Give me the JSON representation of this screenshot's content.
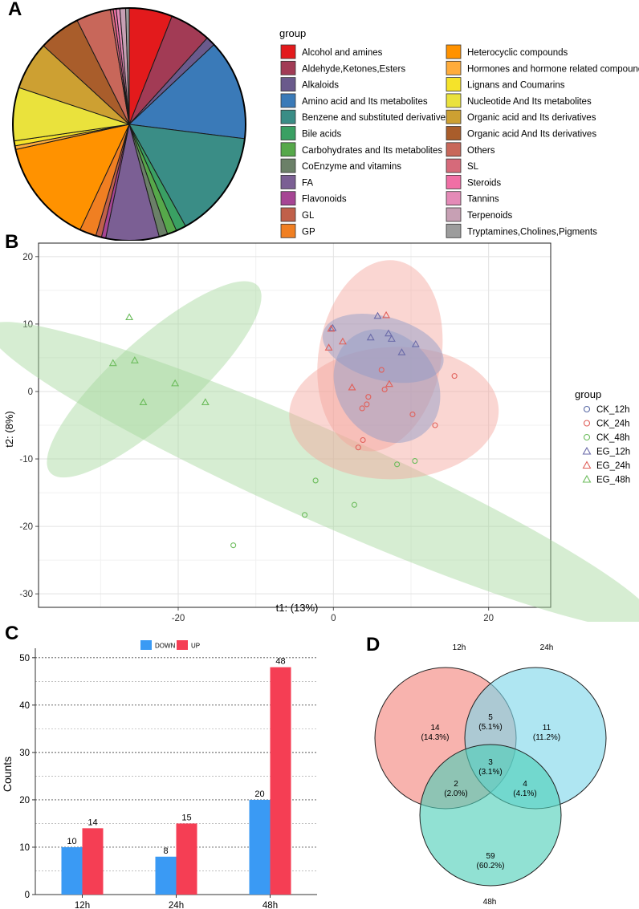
{
  "panels": {
    "a": "A",
    "b": "B",
    "c": "C",
    "d": "D"
  },
  "chart_data": [
    {
      "type": "pie",
      "panel": "A",
      "legend_title": "group",
      "slices": [
        {
          "label": "Alcohol and amines",
          "value": 6.0,
          "color": "#e31a1c"
        },
        {
          "label": "Aldehyde,Ketones,Esters",
          "value": 5.7,
          "color": "#a23b55"
        },
        {
          "label": "Alkaloids",
          "value": 1.3,
          "color": "#6a5a8c"
        },
        {
          "label": "Amino acid and Its metabolites",
          "value": 14.0,
          "color": "#3a7ab8"
        },
        {
          "label": "Benzene and substituted derivatives",
          "value": 15.0,
          "color": "#3a8d86"
        },
        {
          "label": "Bile acids",
          "value": 1.4,
          "color": "#3aa063"
        },
        {
          "label": "Carbohydrates and Its metabolites",
          "value": 1.3,
          "color": "#56a84a"
        },
        {
          "label": "CoEnzyme and vitamins",
          "value": 1.2,
          "color": "#6b8068"
        },
        {
          "label": "FA",
          "value": 7.4,
          "color": "#7b5f94"
        },
        {
          "label": "Flavonoids",
          "value": 0.6,
          "color": "#a64594"
        },
        {
          "label": "GL",
          "value": 0.8,
          "color": "#c0604a"
        },
        {
          "label": "GP",
          "value": 2.3,
          "color": "#f07f22"
        },
        {
          "label": "Heterocyclic compounds",
          "value": 14.6,
          "color": "#ff9200"
        },
        {
          "label": "Hormones and hormone related compounds",
          "value": 0.5,
          "color": "#ffac3b"
        },
        {
          "label": "Lignans and Coumarins",
          "value": 0.7,
          "color": "#f5e32a"
        },
        {
          "label": "Nucleotide And Its metabolites",
          "value": 7.4,
          "color": "#eae23c"
        },
        {
          "label": "Organic acid and Its derivatives",
          "value": 6.7,
          "color": "#cda032"
        },
        {
          "label": "Organic acid And Its derivatives",
          "value": 5.8,
          "color": "#a95d2b"
        },
        {
          "label": "Others",
          "value": 4.8,
          "color": "#c8675a"
        },
        {
          "label": "SL",
          "value": 0.4,
          "color": "#d66a7a"
        },
        {
          "label": "Steroids",
          "value": 0.4,
          "color": "#f06fa5"
        },
        {
          "label": "Tannins",
          "value": 0.5,
          "color": "#e48ab7"
        },
        {
          "label": "Terpenoids",
          "value": 0.8,
          "color": "#c7a0b4"
        },
        {
          "label": "Tryptamines,Cholines,Pigments",
          "value": 0.5,
          "color": "#9c9c9c"
        }
      ]
    },
    {
      "type": "scatter",
      "panel": "B",
      "xlabel": "t1: (13%)",
      "ylabel": "t2: (8%)",
      "xlim": [
        -38,
        28
      ],
      "ylim": [
        -32,
        22
      ],
      "xticks": [
        -20,
        0,
        20
      ],
      "yticks": [
        -30,
        -20,
        -10,
        0,
        10,
        20
      ],
      "legend_title": "group",
      "series": [
        {
          "name": "CK_12h",
          "marker": "circle",
          "color": "#5a6aa6",
          "points": []
        },
        {
          "name": "CK_24h",
          "marker": "circle",
          "color": "#e0605a",
          "points": [
            [
              4.3,
              -1.9
            ],
            [
              4.5,
              -0.8
            ],
            [
              6.2,
              3.2
            ],
            [
              6.6,
              0.3
            ],
            [
              3.7,
              -2.5
            ],
            [
              15.6,
              2.3
            ],
            [
              10.2,
              -3.4
            ],
            [
              3.8,
              -7.2
            ],
            [
              13.1,
              -5.0
            ],
            [
              3.2,
              -8.3
            ]
          ]
        },
        {
          "name": "CK_48h",
          "marker": "circle",
          "color": "#6cbc5c",
          "points": [
            [
              10.5,
              -10.3
            ],
            [
              8.2,
              -10.8
            ],
            [
              -2.3,
              -13.2
            ],
            [
              2.7,
              -16.8
            ],
            [
              -3.7,
              -18.3
            ],
            [
              -12.9,
              -22.8
            ]
          ]
        },
        {
          "name": "EG_12h",
          "marker": "triangle",
          "color": "#6a6aa8",
          "points": [
            [
              -0.1,
              9.4
            ],
            [
              5.7,
              11.2
            ],
            [
              7.1,
              8.6
            ],
            [
              4.8,
              8.0
            ],
            [
              7.5,
              7.8
            ],
            [
              10.6,
              7.0
            ],
            [
              8.8,
              5.8
            ]
          ]
        },
        {
          "name": "EG_24h",
          "marker": "triangle",
          "color": "#e0605a",
          "points": [
            [
              -0.3,
              9.3
            ],
            [
              6.8,
              11.3
            ],
            [
              1.2,
              7.4
            ],
            [
              -0.6,
              6.5
            ],
            [
              2.4,
              0.6
            ],
            [
              7.2,
              1.1
            ]
          ]
        },
        {
          "name": "EG_48h",
          "marker": "triangle",
          "color": "#6cbc5c",
          "points": [
            [
              -26.3,
              11.0
            ],
            [
              -28.4,
              4.2
            ],
            [
              -25.6,
              4.6
            ],
            [
              -20.4,
              1.2
            ],
            [
              -24.5,
              -1.6
            ],
            [
              -16.5,
              -1.6
            ]
          ]
        }
      ],
      "ellipses": [
        {
          "group": "EG_48h",
          "center": [
            -23.1,
            1.8
          ],
          "rx": 18.0,
          "ry": 6.0,
          "angle": 42,
          "color": "#a5d79c"
        },
        {
          "group": "CK_48h",
          "center": [
            -1.5,
            -12.5
          ],
          "rx": 47.0,
          "ry": 6.7,
          "angle": -24,
          "color": "#a5d79c"
        },
        {
          "group": "EG_24h",
          "center": [
            6.0,
            5.3
          ],
          "rx": 7.9,
          "ry": 14.3,
          "angle": -10,
          "color": "#f4a39b"
        },
        {
          "group": "CK_24h",
          "center": [
            7.8,
            -3.2
          ],
          "rx": 13.5,
          "ry": 9.8,
          "angle": 2,
          "color": "#f4a39b"
        },
        {
          "group": "EG_12h",
          "center": [
            6.4,
            6.4
          ],
          "rx": 8.0,
          "ry": 4.7,
          "angle": -15,
          "color": "#8a9ac8"
        },
        {
          "group": "CK_12h",
          "center": [
            6.9,
            0.8
          ],
          "rx": 6.4,
          "ry": 8.9,
          "angle": 35,
          "color": "#8a9ac8"
        }
      ]
    },
    {
      "type": "bar",
      "panel": "C",
      "categories": [
        "12h",
        "24h",
        "48h"
      ],
      "ylabel": "Counts",
      "ylim": [
        0,
        52
      ],
      "yticks": [
        0,
        10,
        20,
        30,
        40,
        50
      ],
      "series": [
        {
          "name": "DOWN",
          "color": "#3a9af4",
          "values": [
            10,
            8,
            20
          ]
        },
        {
          "name": "UP",
          "color": "#f53e54",
          "values": [
            14,
            15,
            48
          ]
        }
      ]
    },
    {
      "type": "venn",
      "panel": "D",
      "sets": [
        {
          "name": "12h",
          "color": "#f4857c"
        },
        {
          "name": "24h",
          "color": "#7ed7ea"
        },
        {
          "name": "48h",
          "color": "#4dcfb8"
        }
      ],
      "regions": [
        {
          "sets": [
            "12h"
          ],
          "count": "14",
          "percent": "(14.3%)"
        },
        {
          "sets": [
            "24h"
          ],
          "count": "11",
          "percent": "(11.2%)"
        },
        {
          "sets": [
            "48h"
          ],
          "count": "59",
          "percent": "(60.2%)"
        },
        {
          "sets": [
            "12h",
            "24h"
          ],
          "count": "5",
          "percent": "(5.1%)"
        },
        {
          "sets": [
            "12h",
            "48h"
          ],
          "count": "2",
          "percent": "(2.0%)"
        },
        {
          "sets": [
            "24h",
            "48h"
          ],
          "count": "4",
          "percent": "(4.1%)"
        },
        {
          "sets": [
            "12h",
            "24h",
            "48h"
          ],
          "count": "3",
          "percent": "(3.1%)"
        }
      ]
    }
  ]
}
